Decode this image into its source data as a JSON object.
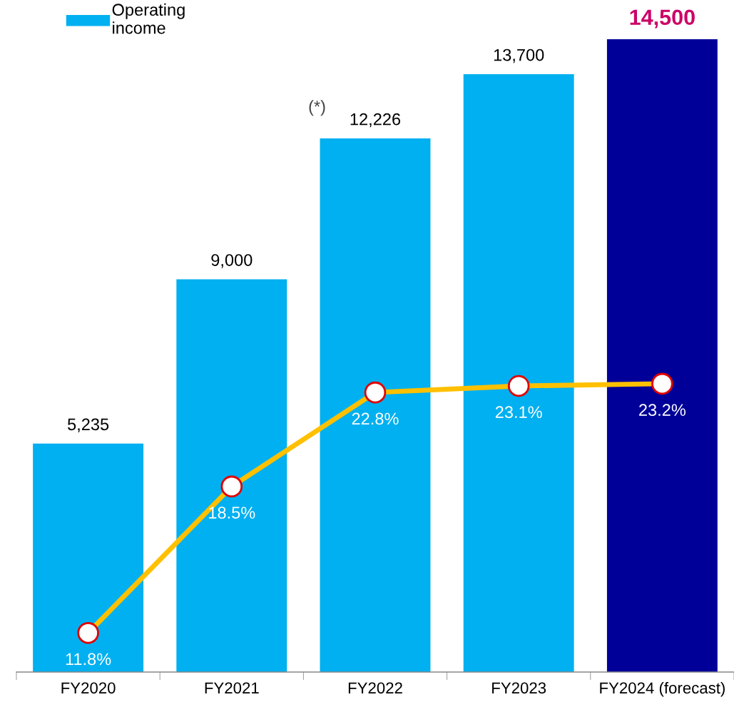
{
  "chart_data": {
    "type": "bar",
    "categories": [
      "FY2020",
      "FY2021",
      "FY2022",
      "FY2023",
      "FY2024 (forecast)"
    ],
    "series": [
      {
        "name": "Operating income",
        "colors": [
          "#00b0f0",
          "#00b0f0",
          "#00b0f0",
          "#00b0f0",
          "#000099"
        ],
        "values": [
          5235,
          9000,
          12226,
          13700,
          14500
        ],
        "value_labels": [
          "5,235",
          "9,000",
          "12,226",
          "13,700",
          "14,500"
        ]
      },
      {
        "type": "line",
        "axis": "y2",
        "color": "#ffc000",
        "values": [
          11.8,
          18.5,
          22.8,
          23.1,
          23.2
        ],
        "value_labels": [
          "11.8%",
          "18.5%",
          "22.8%",
          "23.1%",
          "23.2%"
        ]
      }
    ],
    "tick_labels": "x",
    "grid": false,
    "legend": "top left",
    "marker": "circle",
    "annotations": [
      "(*)"
    ]
  }
}
